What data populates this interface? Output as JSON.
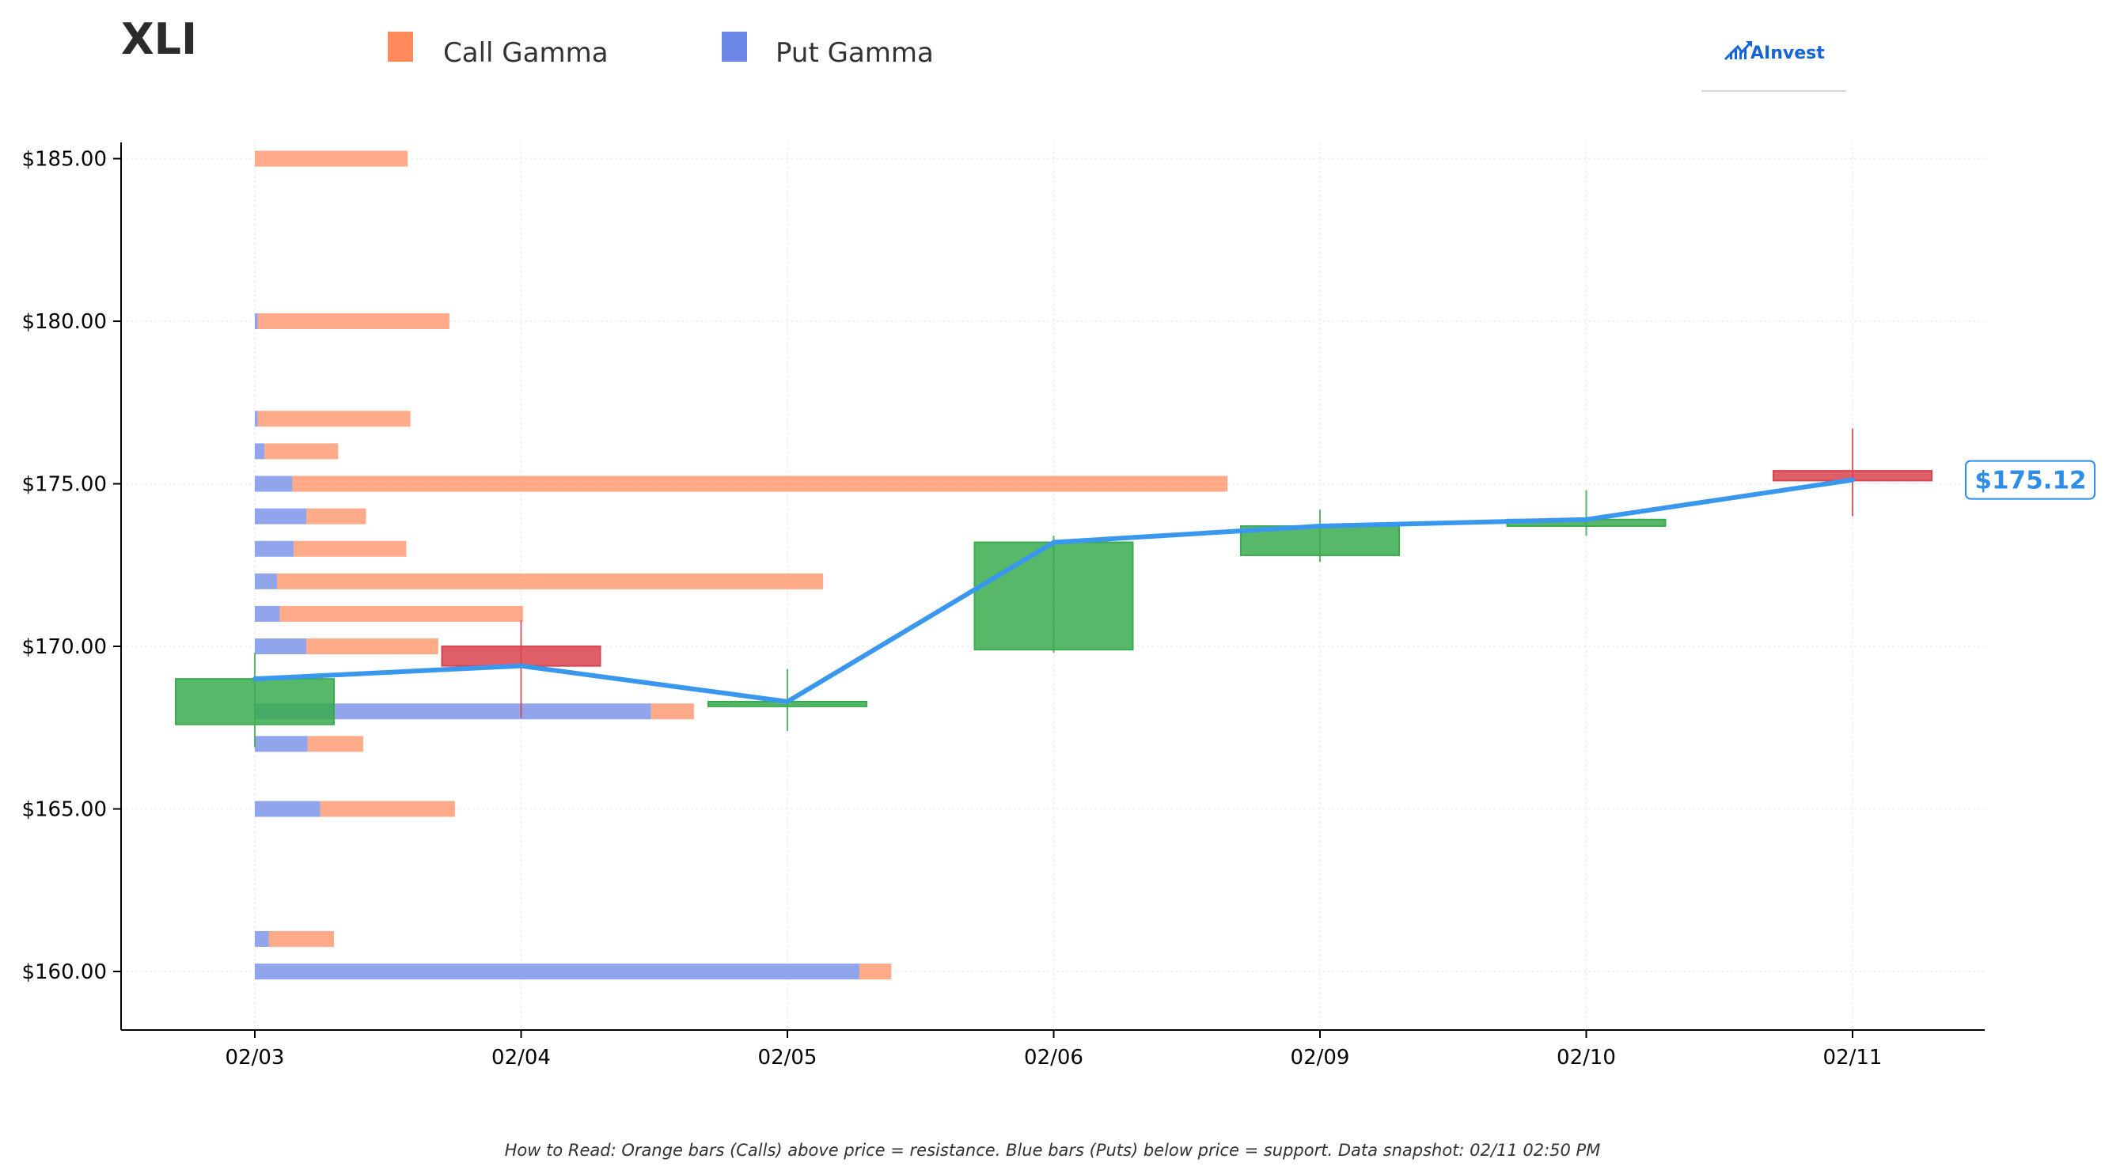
{
  "title": "XLI",
  "legend": [
    {
      "label": "Call Gamma",
      "color": "#ff8a5c"
    },
    {
      "label": "Put Gamma",
      "color": "#6b87e6"
    }
  ],
  "logo": {
    "text": "AInvest",
    "icon": "chart-arrow-icon"
  },
  "footnote": "How to Read: Orange bars (Calls) above price = resistance. Blue bars (Puts) below price = support. Data snapshot: 02/11 02:50 PM",
  "colors": {
    "call": "#ff8a5c",
    "put": "#6b87e6",
    "up": "#3aab4f",
    "down": "#d9434f",
    "price_line": "#3a97ee",
    "price_label": "#2d8de8"
  },
  "chart_data": {
    "type": "candlestick",
    "categories": [
      "02/03",
      "02/04",
      "02/05",
      "02/06",
      "02/09",
      "02/10",
      "02/11"
    ],
    "ylim": [
      158.2,
      185.5
    ],
    "yticks": [
      160,
      165,
      170,
      175,
      180,
      185
    ],
    "ytick_labels": [
      "$160.00",
      "$165.00",
      "$170.00",
      "$175.00",
      "$180.00",
      "$185.00"
    ],
    "grid": true,
    "ohlc": [
      {
        "date": "02/03",
        "open": 167.6,
        "high": 169.8,
        "low": 166.9,
        "close": 169.0
      },
      {
        "date": "02/04",
        "open": 170.0,
        "high": 170.8,
        "low": 167.8,
        "close": 169.4
      },
      {
        "date": "02/05",
        "open": 168.2,
        "high": 169.3,
        "low": 167.4,
        "close": 168.3
      },
      {
        "date": "02/06",
        "open": 169.9,
        "high": 173.4,
        "low": 169.8,
        "close": 173.2
      },
      {
        "date": "02/09",
        "open": 172.8,
        "high": 174.2,
        "low": 172.6,
        "close": 173.7
      },
      {
        "date": "02/10",
        "open": 173.7,
        "high": 174.8,
        "low": 173.4,
        "close": 173.9
      },
      {
        "date": "02/11",
        "open": 175.4,
        "high": 176.7,
        "low": 174.0,
        "close": 175.1
      }
    ],
    "price_line": [
      169.0,
      169.4,
      168.3,
      173.2,
      173.7,
      173.9,
      175.12
    ],
    "current_price_label": "$175.12",
    "gamma_by_strike": [
      {
        "strike": 185,
        "put": 0.0,
        "call": 1.1
      },
      {
        "strike": 180,
        "put": 0.02,
        "call": 1.38
      },
      {
        "strike": 177,
        "put": 0.02,
        "call": 1.1
      },
      {
        "strike": 176,
        "put": 0.07,
        "call": 0.53
      },
      {
        "strike": 175,
        "put": 0.27,
        "call": 6.73
      },
      {
        "strike": 174,
        "put": 0.37,
        "call": 0.43
      },
      {
        "strike": 173,
        "put": 0.28,
        "call": 0.81
      },
      {
        "strike": 172,
        "put": 0.16,
        "call": 3.93
      },
      {
        "strike": 171,
        "put": 0.18,
        "call": 1.75
      },
      {
        "strike": 170,
        "put": 0.37,
        "call": 0.95
      },
      {
        "strike": 168,
        "put": 2.85,
        "call": 0.31
      },
      {
        "strike": 167,
        "put": 0.38,
        "call": 0.4
      },
      {
        "strike": 165,
        "put": 0.47,
        "call": 0.97
      },
      {
        "strike": 161,
        "put": 0.1,
        "call": 0.47
      },
      {
        "strike": 160,
        "put": 4.35,
        "call": 0.23
      }
    ]
  }
}
